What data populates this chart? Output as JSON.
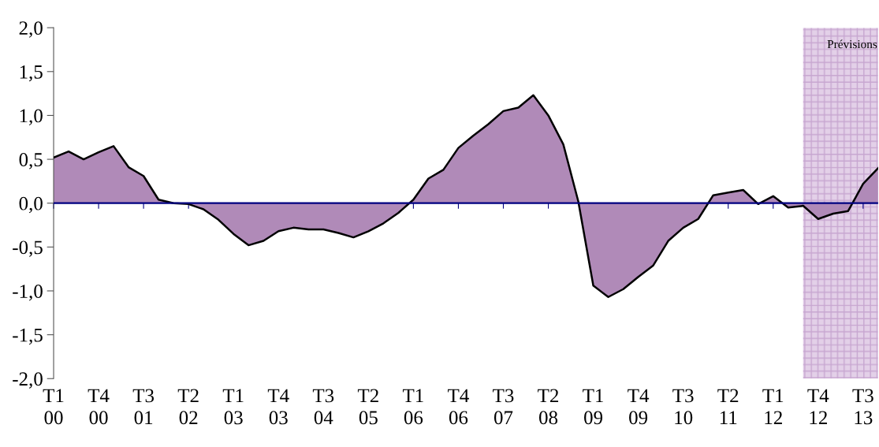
{
  "chart_data": {
    "type": "area",
    "categories": [
      "T1\n00",
      null,
      null,
      "T4\n00",
      null,
      null,
      "T3\n01",
      null,
      null,
      "T2\n02",
      null,
      null,
      "T1\n03",
      null,
      null,
      "T4\n03",
      null,
      null,
      "T3\n04",
      null,
      null,
      "T2\n05",
      null,
      null,
      "T1\n06",
      null,
      null,
      "T4\n06",
      null,
      null,
      "T3\n07",
      null,
      null,
      "T2\n08",
      null,
      null,
      "T1\n09",
      null,
      null,
      "T4\n09",
      null,
      null,
      "T3\n10",
      null,
      null,
      "T2\n11",
      null,
      null,
      "T1\n12",
      null,
      null,
      "T4\n12",
      null,
      null,
      "T3\n13",
      null
    ],
    "series": [
      {
        "color": "#b08ab8",
        "values": [
          0.52,
          0.59,
          0.5,
          0.58,
          0.65,
          0.41,
          0.31,
          0.04,
          0.0,
          -0.01,
          -0.07,
          -0.19,
          -0.35,
          -0.48,
          -0.43,
          -0.32,
          -0.28,
          -0.3,
          -0.3,
          -0.34,
          -0.39,
          -0.32,
          -0.23,
          -0.11,
          0.04,
          0.28,
          0.38,
          0.63,
          0.77,
          0.9,
          1.05,
          1.09,
          1.23,
          1.0,
          0.67,
          0.02,
          -0.94,
          -1.07,
          -0.98,
          -0.84,
          -0.71,
          -0.43,
          -0.28,
          -0.18,
          0.09,
          0.12,
          0.15,
          -0.01,
          0.08,
          -0.05,
          -0.03,
          -0.18,
          -0.12,
          -0.09,
          0.22,
          0.4
        ]
      }
    ],
    "ylim": [
      -2,
      2
    ],
    "yticks": [
      {
        "value": -2,
        "label": "-2,0"
      },
      {
        "value": -1.5,
        "label": "-1,5"
      },
      {
        "value": -1,
        "label": "-1,0"
      },
      {
        "value": -0.5,
        "label": "-0,5"
      },
      {
        "value": 0,
        "label": "0,0"
      },
      {
        "value": 0.5,
        "label": "0,5"
      },
      {
        "value": 1,
        "label": "1,0"
      },
      {
        "value": 1.5,
        "label": "1,5"
      },
      {
        "value": 2,
        "label": "2,0"
      }
    ],
    "annotations": [
      "Prévisions"
    ],
    "ref_lines": [
      {
        "axis": "y",
        "value": 0,
        "color": "#000080"
      }
    ],
    "grid": false,
    "legend": false
  }
}
